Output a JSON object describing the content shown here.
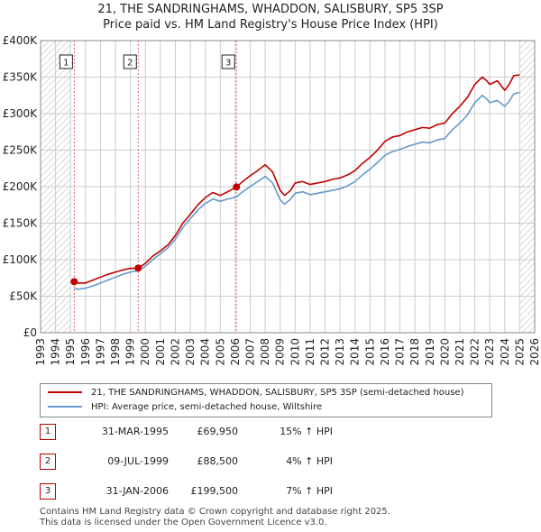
{
  "title_line1": "21, THE SANDRINGHAMS, WHADDON, SALISBURY, SP5 3SP",
  "title_line2": "Price paid vs. HM Land Registry's House Price Index (HPI)",
  "colors": {
    "property": "#c00000",
    "hpi": "#6699cc",
    "marker_line": "#dd6666",
    "hatch": "#cccccc",
    "grid": "#cccccc"
  },
  "chart_data": {
    "type": "line",
    "title": "21, THE SANDRINGHAMS, WHADDON, SALISBURY, SP5 3SP — Price paid vs. HM Land Registry's House Price Index (HPI)",
    "xlim": [
      1993,
      2026
    ],
    "ylim": [
      0,
      400000
    ],
    "x_ticks": [
      "1993",
      "1994",
      "1995",
      "1996",
      "1997",
      "1998",
      "1999",
      "2000",
      "2001",
      "2002",
      "2003",
      "2004",
      "2005",
      "2006",
      "2007",
      "2008",
      "2009",
      "2010",
      "2011",
      "2012",
      "2013",
      "2014",
      "2015",
      "2016",
      "2017",
      "2018",
      "2019",
      "2020",
      "2021",
      "2022",
      "2023",
      "2024",
      "2025",
      "2026"
    ],
    "y_ticks": [
      {
        "value": 0,
        "label": "£0"
      },
      {
        "value": 50000,
        "label": "£50K"
      },
      {
        "value": 100000,
        "label": "£100K"
      },
      {
        "value": 150000,
        "label": "£150K"
      },
      {
        "value": 200000,
        "label": "£200K"
      },
      {
        "value": 250000,
        "label": "£250K"
      },
      {
        "value": 300000,
        "label": "£300K"
      },
      {
        "value": 350000,
        "label": "£350K"
      },
      {
        "value": 400000,
        "label": "£400K"
      }
    ],
    "hatched_ranges": [
      [
        1993,
        1995.0
      ],
      [
        2025.0,
        2026
      ]
    ],
    "series": [
      {
        "name": "21, THE SANDRINGHAMS, WHADDON, SALISBURY, SP5 3SP (semi-detached house)",
        "x": [
          1995.25,
          1995.5,
          1996,
          1996.5,
          1997,
          1997.5,
          1998,
          1998.5,
          1999,
          1999.52,
          2000,
          2000.5,
          2001,
          2001.5,
          2002,
          2002.5,
          2003,
          2003.5,
          2004,
          2004.5,
          2005,
          2005.5,
          2006.08,
          2006.5,
          2007,
          2007.5,
          2008,
          2008.5,
          2009,
          2009.3,
          2009.7,
          2010,
          2010.5,
          2011,
          2011.5,
          2012,
          2012.5,
          2013,
          2013.5,
          2014,
          2014.5,
          2015,
          2015.5,
          2016,
          2016.5,
          2017,
          2017.5,
          2018,
          2018.5,
          2019,
          2019.5,
          2020,
          2020.5,
          2021,
          2021.5,
          2022,
          2022.5,
          2022.8,
          2023,
          2023.5,
          2024,
          2024.3,
          2024.6,
          2025.0
        ],
        "values": [
          69950,
          68000,
          68000,
          72000,
          76000,
          80000,
          83000,
          86000,
          88000,
          88500,
          95000,
          105000,
          112000,
          120000,
          133000,
          150000,
          162000,
          175000,
          185000,
          192000,
          188000,
          193000,
          199500,
          207000,
          215000,
          222000,
          230000,
          220000,
          195000,
          188000,
          195000,
          205000,
          207000,
          203000,
          205000,
          207000,
          210000,
          212000,
          216000,
          222000,
          232000,
          240000,
          250000,
          262000,
          268000,
          270000,
          275000,
          278000,
          281000,
          280000,
          285000,
          287000,
          300000,
          310000,
          322000,
          340000,
          350000,
          345000,
          340000,
          345000,
          332000,
          340000,
          352000,
          353000
        ]
      },
      {
        "name": "HPI: Average price, semi-detached house, Wiltshire",
        "x": [
          1995.25,
          1995.5,
          1996,
          1996.5,
          1997,
          1997.5,
          1998,
          1998.5,
          1999,
          1999.52,
          2000,
          2000.5,
          2001,
          2001.5,
          2002,
          2002.5,
          2003,
          2003.5,
          2004,
          2004.5,
          2005,
          2005.5,
          2006.08,
          2006.5,
          2007,
          2007.5,
          2008,
          2008.5,
          2009,
          2009.3,
          2009.7,
          2010,
          2010.5,
          2011,
          2011.5,
          2012,
          2012.5,
          2013,
          2013.5,
          2014,
          2014.5,
          2015,
          2015.5,
          2016,
          2016.5,
          2017,
          2017.5,
          2018,
          2018.5,
          2019,
          2019.5,
          2020,
          2020.5,
          2021,
          2021.5,
          2022,
          2022.5,
          2022.8,
          2023,
          2023.5,
          2024,
          2024.3,
          2024.6,
          2025.0
        ],
        "values": [
          60800,
          59500,
          61000,
          64000,
          68000,
          72000,
          76000,
          80000,
          83000,
          85000,
          91000,
          100000,
          108000,
          116000,
          128000,
          144000,
          156000,
          168000,
          177000,
          183000,
          180000,
          183000,
          186000,
          193000,
          200000,
          207000,
          214000,
          205000,
          182000,
          176000,
          183000,
          191000,
          193000,
          189000,
          191000,
          193000,
          195000,
          197000,
          201000,
          207000,
          216000,
          224000,
          233000,
          243000,
          248000,
          251000,
          255000,
          258000,
          261000,
          260000,
          264000,
          266000,
          278000,
          287000,
          298000,
          315000,
          325000,
          320000,
          315000,
          318000,
          310000,
          317000,
          327000,
          329000
        ]
      }
    ],
    "sales": [
      {
        "label": "1",
        "x": 1995.25,
        "value": 69950
      },
      {
        "label": "2",
        "x": 1999.52,
        "value": 88500
      },
      {
        "label": "3",
        "x": 2006.08,
        "value": 199500
      }
    ]
  },
  "legend": {
    "property_label": "21, THE SANDRINGHAMS, WHADDON, SALISBURY, SP5 3SP (semi-detached house)",
    "hpi_label": "HPI: Average price, semi-detached house, Wiltshire"
  },
  "sales_table": [
    {
      "num": "1",
      "date": "31-MAR-1995",
      "price": "£69,950",
      "hpi": "15% ↑ HPI"
    },
    {
      "num": "2",
      "date": "09-JUL-1999",
      "price": "£88,500",
      "hpi": "4% ↑ HPI"
    },
    {
      "num": "3",
      "date": "31-JAN-2006",
      "price": "£199,500",
      "hpi": "7% ↑ HPI"
    }
  ],
  "footer": {
    "line1": "Contains HM Land Registry data © Crown copyright and database right 2025.",
    "line2": "This data is licensed under the Open Government Licence v3.0."
  }
}
